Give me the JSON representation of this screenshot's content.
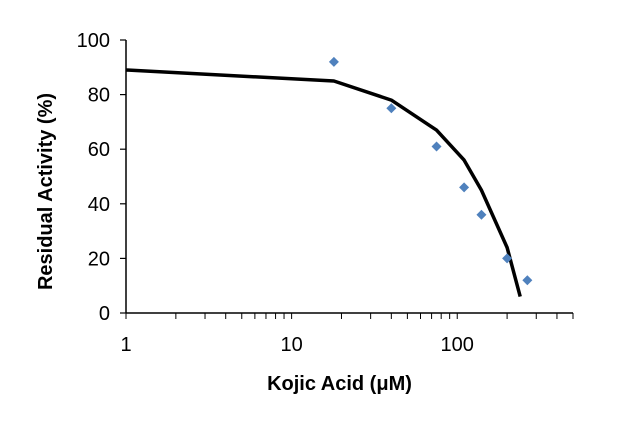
{
  "chart_data": {
    "type": "scatter",
    "title": "",
    "xlabel": "Kojic Acid (μM)",
    "ylabel": "Residual Activity (%)",
    "xscale": "log",
    "xlim": [
      1,
      500
    ],
    "ylim": [
      0,
      100
    ],
    "x_ticks": [
      1,
      10,
      100
    ],
    "y_ticks": [
      0,
      20,
      40,
      60,
      80,
      100
    ],
    "grid": false,
    "legend": "none",
    "series": [
      {
        "kind": "points",
        "marker": "diamond",
        "color": "#4f81bd",
        "x": [
          18,
          40,
          75,
          110,
          140,
          200,
          265
        ],
        "y": [
          92,
          75,
          61,
          46,
          36,
          20,
          12
        ]
      },
      {
        "kind": "fit-line",
        "color": "#000000",
        "x": [
          1,
          18,
          40,
          75,
          110,
          140,
          200,
          240
        ],
        "y": [
          89,
          85,
          78,
          67,
          56,
          45,
          24,
          6
        ]
      }
    ]
  }
}
